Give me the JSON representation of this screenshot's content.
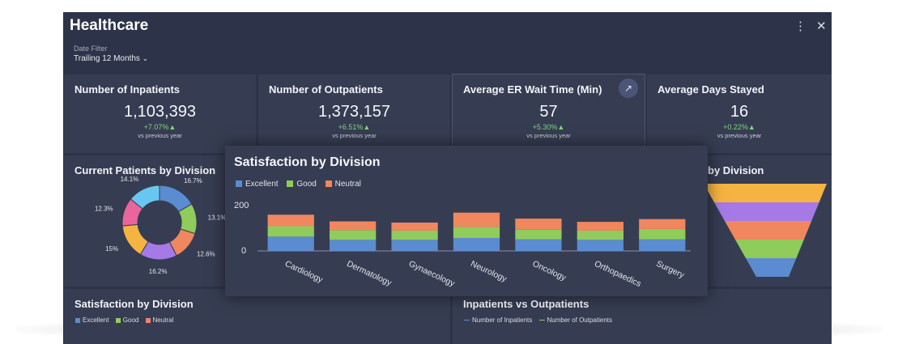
{
  "header": {
    "title": "Healthcare",
    "filter_label": "Date Filter",
    "filter_value": "Trailing 12 Months"
  },
  "kpis": [
    {
      "title": "Number of Inpatients",
      "value": "1,103,393",
      "change": "+7.07%▲",
      "sub": "vs previous year"
    },
    {
      "title": "Number of Outpatients",
      "value": "1,373,157",
      "change": "+6.51%▲",
      "sub": "vs previous year"
    },
    {
      "title": "Average ER Wait Time (Min)",
      "value": "57",
      "change": "+5.30%▲",
      "sub": "vs previous year"
    },
    {
      "title": "Average Days Stayed",
      "value": "16",
      "change": "+0.22%▲",
      "sub": "vs previous year"
    }
  ],
  "donut_card": {
    "title": "Current Patients by Division",
    "labels": [
      "16.7%",
      "13.1%",
      "12.6%",
      "16.2%",
      "15%",
      "12.3%",
      "14.1%"
    ]
  },
  "funnel_card": {
    "title_fragment": "by Division"
  },
  "bottom_left": {
    "title": "Satisfaction by Division",
    "legend": [
      "Excellent",
      "Good",
      "Neutral"
    ]
  },
  "bottom_right": {
    "title": "Inpatients vs Outpatients",
    "legend": [
      "Number of Inpatients",
      "Number of Outpatients"
    ]
  },
  "popup": {
    "title": "Satisfaction by Division",
    "legend": [
      "Excellent",
      "Good",
      "Neutral"
    ]
  },
  "colors": {
    "excellent": "#5b8bd0",
    "good": "#8fcc5b",
    "neutral": "#f0875f",
    "positive": "#7ed67e",
    "donut": [
      "#5b8bd0",
      "#8fcc5b",
      "#f0875f",
      "#a57ae6",
      "#f5b342",
      "#e9659c",
      "#68c7f0"
    ],
    "funnel": [
      "#f5b342",
      "#a57ae6",
      "#f0875f",
      "#8fcc5b",
      "#5b8bd0"
    ]
  },
  "chart_data": {
    "type": "bar",
    "stacked": true,
    "title": "Satisfaction by Division",
    "categories": [
      "Cardiology",
      "Dermatology",
      "Gynaecology",
      "Neurology",
      "Oncology",
      "Orthopaedics",
      "Surgery"
    ],
    "series": [
      {
        "name": "Excellent",
        "values": [
          62,
          48,
          48,
          56,
          50,
          48,
          50
        ]
      },
      {
        "name": "Good",
        "values": [
          45,
          42,
          40,
          48,
          42,
          40,
          45
        ]
      },
      {
        "name": "Neutral",
        "values": [
          50,
          38,
          35,
          62,
          48,
          38,
          43
        ]
      }
    ],
    "yticks": [
      "200",
      "0"
    ],
    "ylim": [
      0,
      200
    ],
    "xlabel": "",
    "ylabel": ""
  },
  "donut_data": {
    "type": "pie",
    "values": [
      16.7,
      13.1,
      12.6,
      16.2,
      15,
      12.3,
      14.1
    ]
  }
}
